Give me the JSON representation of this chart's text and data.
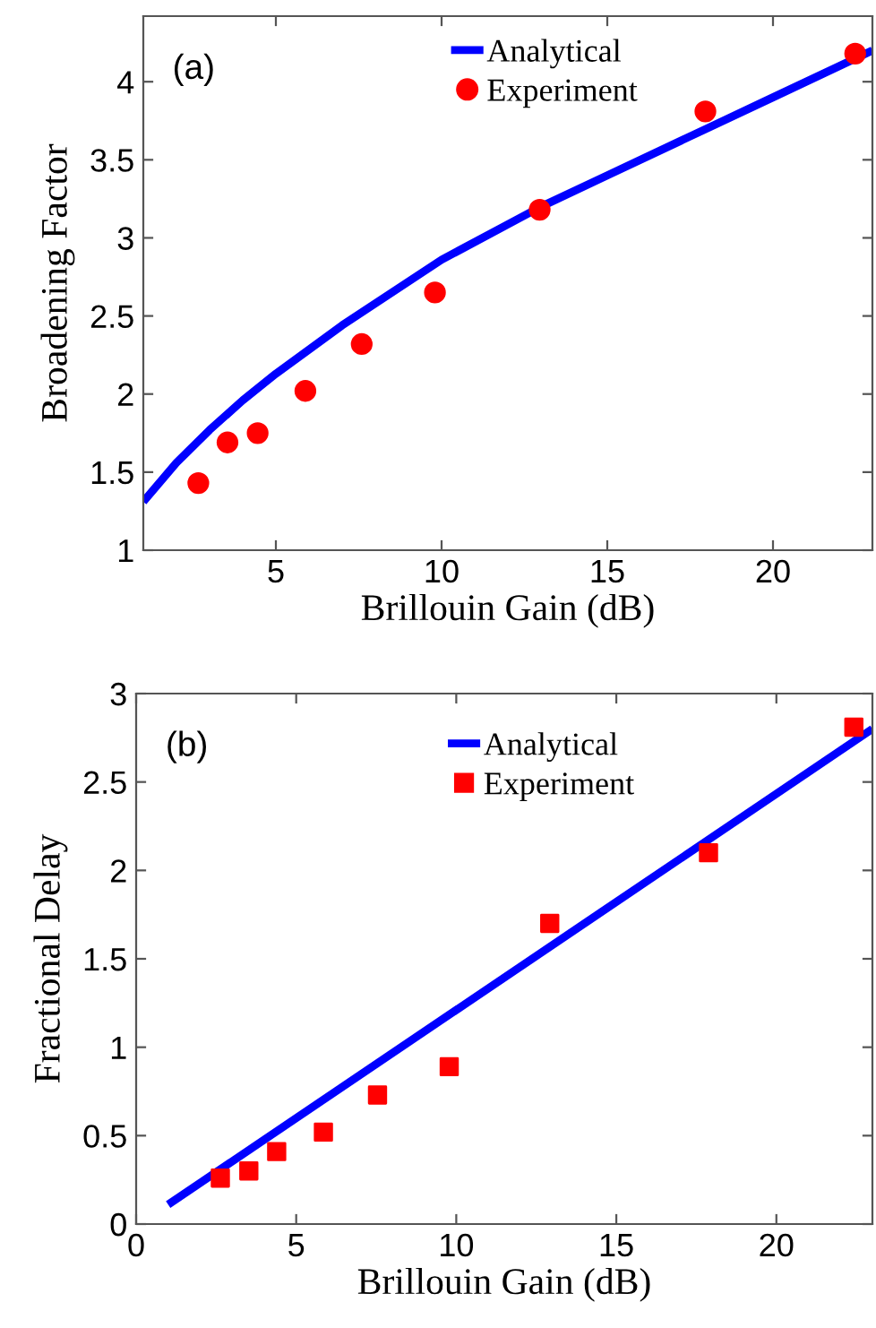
{
  "chart_data": [
    {
      "type": "line",
      "xlabel": "Brillouin Gain (dB)",
      "ylabel": "Broadening Factor",
      "annotations": [
        "(a)"
      ],
      "xlim": [
        1,
        23
      ],
      "ylim": [
        1,
        4.42
      ],
      "xticks": [
        5,
        10,
        15,
        20
      ],
      "yticks": [
        1,
        1.5,
        2,
        2.5,
        3,
        3.5,
        4
      ],
      "grid": false,
      "legend": "top",
      "series": [
        {
          "name": "Analytical",
          "color": "#0000ff",
          "marker": "none",
          "line_style": "solid",
          "x": [
            1,
            2,
            3,
            4,
            5,
            7,
            10,
            13,
            15,
            18,
            20,
            23
          ],
          "values": [
            1.31,
            1.56,
            1.77,
            1.96,
            2.13,
            2.44,
            2.86,
            3.2,
            3.4,
            3.7,
            3.9,
            4.2
          ]
        },
        {
          "name": "Experiment",
          "type": "scatter",
          "color": "#ff0000",
          "marker": "circle",
          "x": [
            2.66,
            3.54,
            4.45,
            5.89,
            7.59,
            9.8,
            12.96,
            17.96,
            22.48
          ],
          "values": [
            1.43,
            1.69,
            1.75,
            2.02,
            2.32,
            2.65,
            3.18,
            3.81,
            4.18
          ]
        }
      ]
    },
    {
      "type": "line",
      "xlabel": "Brillouin Gain (dB)",
      "ylabel": "Fractional Delay",
      "annotations": [
        "(b)"
      ],
      "xlim": [
        0,
        23
      ],
      "ylim": [
        0,
        3
      ],
      "xticks": [
        0,
        5,
        10,
        15,
        20
      ],
      "yticks": [
        0,
        0.5,
        1,
        1.5,
        2,
        2.5,
        3
      ],
      "grid": false,
      "legend": "top",
      "series": [
        {
          "name": "Analytical",
          "color": "#0000ff",
          "marker": "none",
          "line_style": "solid",
          "x": [
            1,
            23
          ],
          "values": [
            0.11,
            2.8
          ]
        },
        {
          "name": "Experiment",
          "type": "scatter",
          "color": "#ff0000",
          "marker": "square",
          "x": [
            2.63,
            3.52,
            4.39,
            5.85,
            7.54,
            9.78,
            12.92,
            17.88,
            22.42
          ],
          "values": [
            0.26,
            0.3,
            0.41,
            0.52,
            0.73,
            0.89,
            1.7,
            2.1,
            2.81
          ]
        }
      ]
    }
  ]
}
